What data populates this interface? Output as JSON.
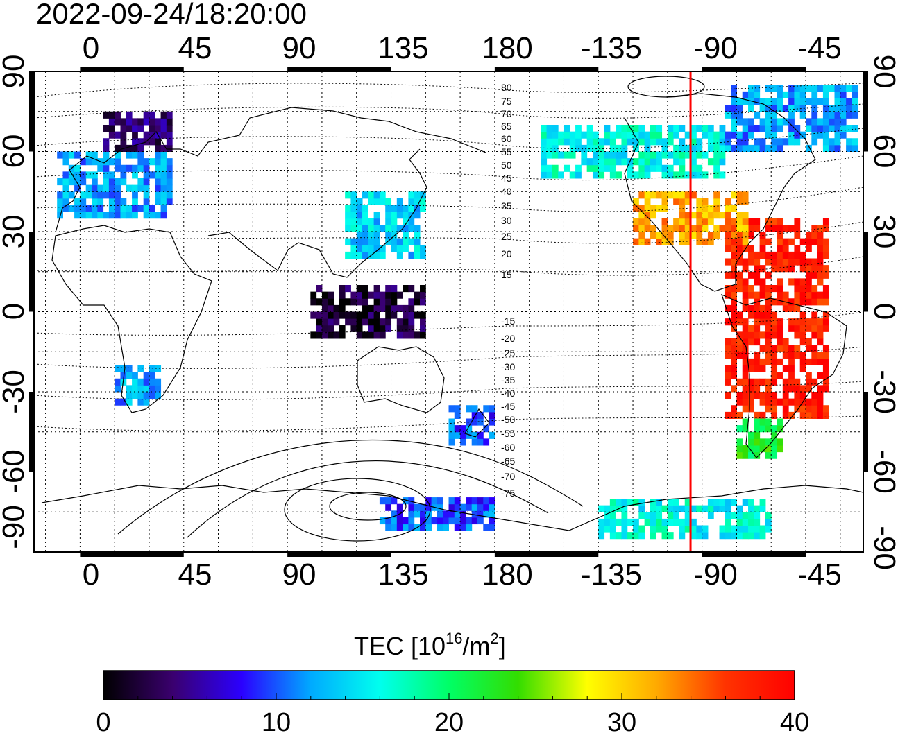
{
  "title": "2022-09-24/18:20:00",
  "map": {
    "top_lon_labels": [
      "0",
      "45",
      "90",
      "135",
      "180",
      "-135",
      "-90",
      "-45"
    ],
    "bottom_lon_labels": [
      "0",
      "45",
      "90",
      "135",
      "180",
      "-135",
      "-90",
      "-45"
    ],
    "left_lat_labels": [
      "90",
      "60",
      "30",
      "0",
      "-30",
      "-60",
      "-90"
    ],
    "right_lat_labels": [
      "90",
      "60",
      "30",
      "0",
      "-30",
      "-60",
      "-90"
    ],
    "magnetic_lat_labels": [
      "80",
      "75",
      "70",
      "65",
      "60",
      "55",
      "50",
      "45",
      "40",
      "35",
      "30",
      "25",
      "20",
      "15",
      "-15",
      "-20",
      "-25",
      "-30",
      "-35",
      "-40",
      "-45",
      "-50",
      "-55",
      "-60",
      "-65",
      "-70",
      "-75"
    ],
    "terminator_lon": -95,
    "terminator_color": "#ff0000"
  },
  "colorbar": {
    "title_prefix": "TEC  [10",
    "title_exp": "16",
    "title_mid": "/m",
    "title_exp2": "2",
    "title_suffix": "]",
    "min": 0,
    "max": 40,
    "tick_labels": [
      "0",
      "10",
      "20",
      "30",
      "40"
    ],
    "colors": [
      "#000000",
      "#3a006e",
      "#2b00ff",
      "#00aaff",
      "#00ffee",
      "#00ff66",
      "#33dd00",
      "#ffff00",
      "#ffaa00",
      "#ff3300",
      "#ff0000"
    ]
  },
  "chart_data": {
    "type": "heatmap",
    "title": "2022-09-24/18:20:00",
    "xlabel": "",
    "ylabel": "",
    "xlim": [
      -20,
      340
    ],
    "ylim": [
      -90,
      90
    ],
    "value_range": [
      0,
      40
    ],
    "regions": [
      {
        "lon": [
          -80,
          -35
        ],
        "lat": [
          -40,
          35
        ],
        "tec": 38
      },
      {
        "lon": [
          -120,
          -70
        ],
        "lat": [
          25,
          45
        ],
        "tec": 32
      },
      {
        "lon": [
          -75,
          -55
        ],
        "lat": [
          -55,
          -40
        ],
        "tec": 22
      },
      {
        "lon": [
          -160,
          -80
        ],
        "lat": [
          50,
          70
        ],
        "tec": 16
      },
      {
        "lon": [
          -80,
          -20
        ],
        "lat": [
          60,
          85
        ],
        "tec": 12
      },
      {
        "lon": [
          -10,
          40
        ],
        "lat": [
          35,
          60
        ],
        "tec": 12
      },
      {
        "lon": [
          10,
          40
        ],
        "lat": [
          60,
          75
        ],
        "tec": 4
      },
      {
        "lon": [
          115,
          150
        ],
        "lat": [
          20,
          45
        ],
        "tec": 14
      },
      {
        "lon": [
          15,
          35
        ],
        "lat": [
          -35,
          -20
        ],
        "tec": 12
      },
      {
        "lon": [
          100,
          150
        ],
        "lat": [
          -10,
          10
        ],
        "tec": 2
      },
      {
        "lon": [
          160,
          180
        ],
        "lat": [
          -50,
          -35
        ],
        "tec": 10
      },
      {
        "lon": [
          130,
          180
        ],
        "lat": [
          -82,
          -70
        ],
        "tec": 10
      },
      {
        "lon": [
          -135,
          -60
        ],
        "lat": [
          -85,
          -70
        ],
        "tec": 16
      }
    ]
  }
}
